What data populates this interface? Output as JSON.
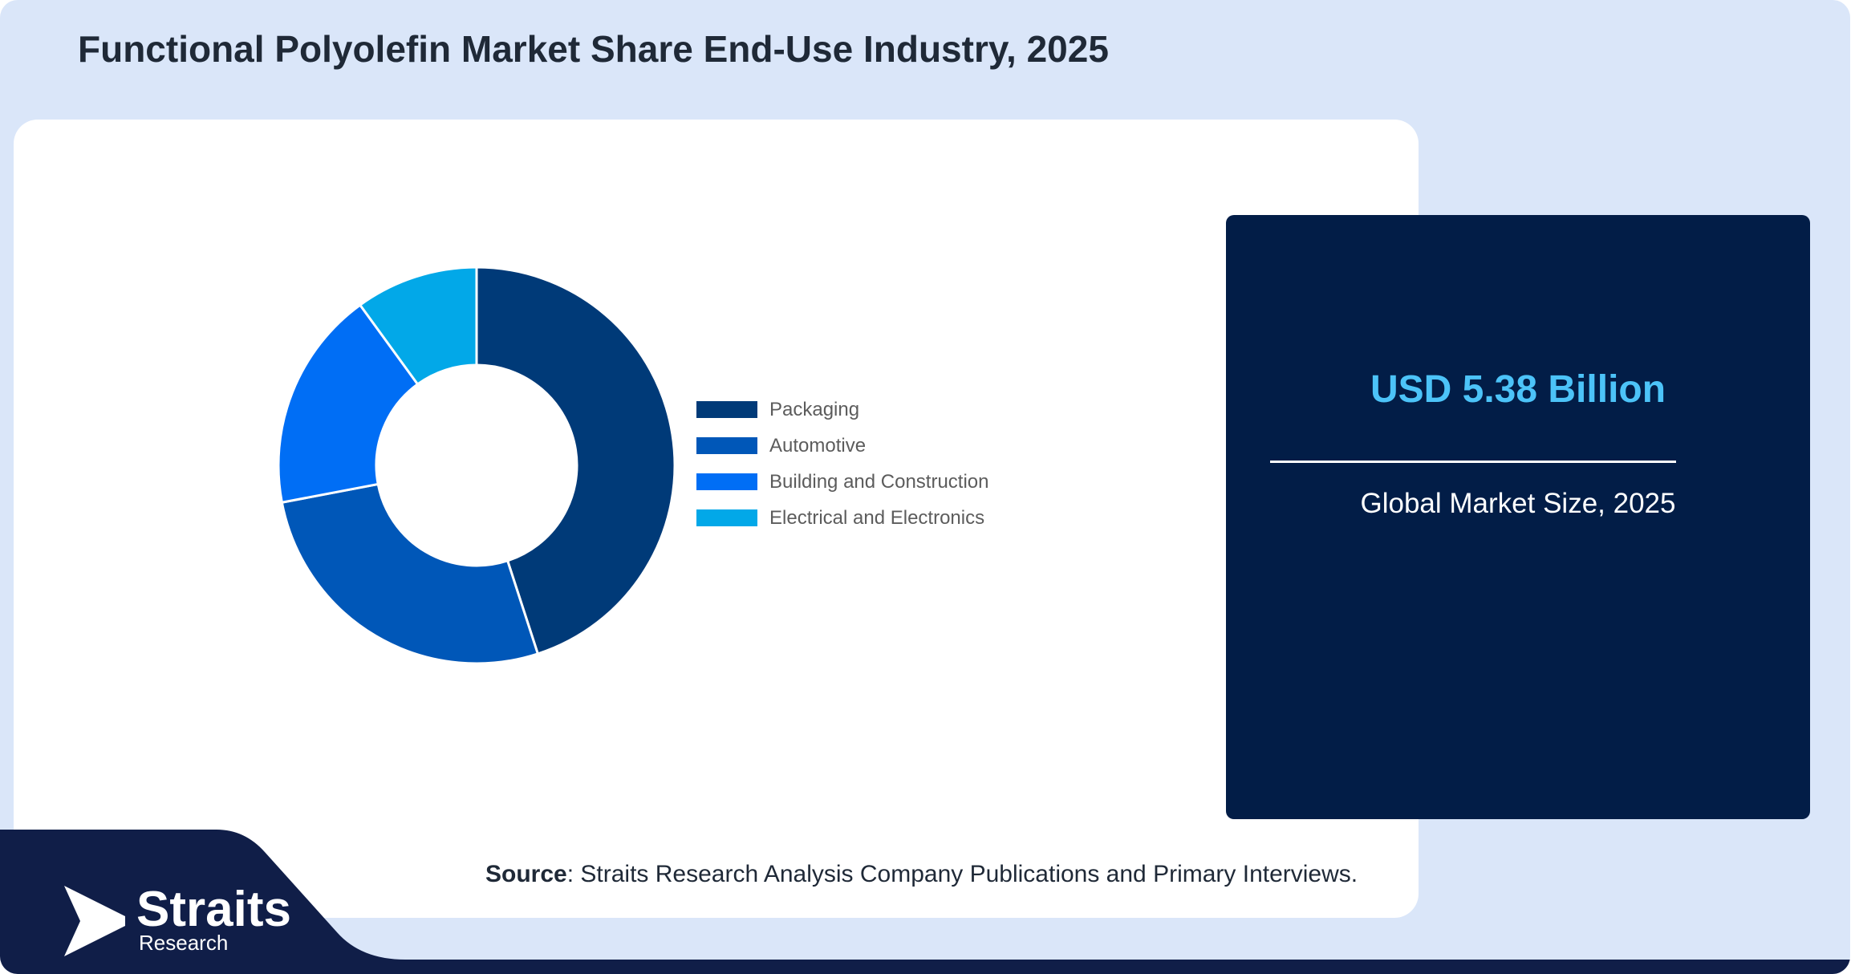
{
  "title": "Functional Polyolefin Market Share End-Use Industry, 2025",
  "chart_data": {
    "type": "pie",
    "variant": "donut",
    "categories": [
      "Packaging",
      "Automotive",
      "Building and Construction",
      "Electrical and Electronics"
    ],
    "values": [
      45,
      27,
      18,
      10
    ],
    "colors": [
      "#003a78",
      "#0057b8",
      "#006ef5",
      "#02a8e8"
    ],
    "legend_position": "right"
  },
  "stat": {
    "value": "USD 5.38 Billion",
    "label": "Global Market Size, 2025"
  },
  "source": {
    "prefix": "Source",
    "text": ": Straits Research Analysis Company Publications and Primary Interviews."
  },
  "logo": {
    "name": "Straits",
    "sub": "Research"
  },
  "colors": {
    "background": "#dae6f9",
    "band": "#101e48",
    "stat_box": "#021d47",
    "stat_value": "#4cc3f8"
  }
}
